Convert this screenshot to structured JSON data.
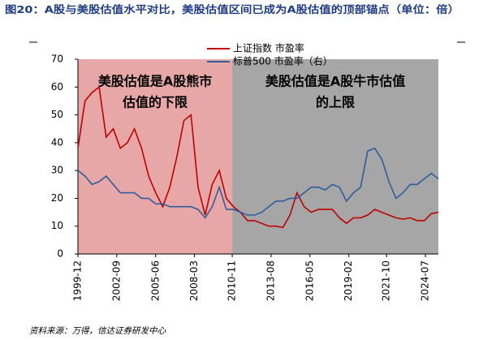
{
  "chart_data": {
    "type": "line",
    "title": "图20：A股与美股估值水平对比，美股估值区间已成为A股估值的顶部锚点（单位：倍）",
    "source": "资料来源：万得，信达证券研发中心",
    "x": [
      "1999-12",
      "2000-06",
      "2000-12",
      "2001-06",
      "2001-12",
      "2002-06",
      "2002-12",
      "2003-06",
      "2003-12",
      "2004-06",
      "2004-12",
      "2005-06",
      "2005-12",
      "2006-06",
      "2006-12",
      "2007-06",
      "2007-12",
      "2008-06",
      "2008-12",
      "2009-06",
      "2009-12",
      "2010-06",
      "2010-12",
      "2011-06",
      "2011-12",
      "2012-06",
      "2012-12",
      "2013-06",
      "2013-12",
      "2014-06",
      "2014-12",
      "2015-06",
      "2015-12",
      "2016-06",
      "2016-12",
      "2017-06",
      "2017-12",
      "2018-06",
      "2018-12",
      "2019-06",
      "2019-12",
      "2020-06",
      "2020-12",
      "2021-06",
      "2021-12",
      "2022-06",
      "2022-12",
      "2023-06",
      "2023-12",
      "2024-06",
      "2024-12",
      "2025-06"
    ],
    "series": [
      {
        "name": "上证指数 市盈率",
        "color": "#c00000",
        "values": [
          38,
          55,
          58,
          60,
          42,
          45,
          38,
          40,
          45,
          38,
          28,
          22,
          17,
          24,
          35,
          48,
          50,
          24,
          14,
          25,
          30,
          20,
          17,
          15,
          12,
          12,
          11,
          10,
          10,
          9.5,
          14,
          22,
          17,
          15,
          16,
          16,
          16,
          13,
          11,
          13,
          13,
          14,
          16,
          15,
          14,
          13,
          12.5,
          13,
          12,
          12,
          14.5,
          15
        ]
      },
      {
        "name": "标普500 市盈率（右）",
        "color": "#2e5e9e",
        "values": [
          30,
          28,
          25,
          26,
          28,
          25,
          22,
          22,
          22,
          20,
          20,
          18,
          18,
          17,
          17,
          17,
          17,
          16,
          13,
          17,
          24,
          16,
          16,
          15,
          14,
          14,
          15,
          17,
          19,
          19,
          20,
          20,
          22,
          24,
          24,
          23,
          25,
          24,
          19,
          22,
          24,
          37,
          38,
          34,
          26,
          20,
          22,
          25,
          25,
          27,
          29,
          27
        ]
      }
    ],
    "xlim": [
      "1999-12",
      "2025-06"
    ],
    "xticks": [
      "1999-12",
      "2002-09",
      "2005-06",
      "2008-03",
      "2010-11",
      "2013-08",
      "2016-05",
      "2019-02",
      "2021-10",
      "2024-07"
    ],
    "ylim": [
      0,
      70
    ],
    "yticks": [
      0,
      10,
      20,
      30,
      40,
      50,
      60,
      70
    ],
    "regions": [
      {
        "start": "1999-12",
        "end": "2010-11",
        "color": "#e8a7a7",
        "label": [
          "美股估值是A股熊市",
          "估值的下限"
        ]
      },
      {
        "start": "2010-11",
        "end": "2025-06",
        "color": "#a6a6a6",
        "label": [
          "美股估值是A股牛市估值",
          "的上限"
        ]
      }
    ]
  }
}
